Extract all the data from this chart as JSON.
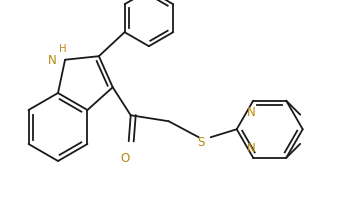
{
  "bg_color": "#ffffff",
  "bond_color": "#1a1a1a",
  "heteroatom_color": "#b8860b",
  "line_width": 1.3,
  "font_size": 8.5,
  "atoms": {
    "N_label": "N",
    "H_label": "H",
    "O_label": "O",
    "S_label": "S",
    "N1_label": "N",
    "N2_label": "N"
  }
}
